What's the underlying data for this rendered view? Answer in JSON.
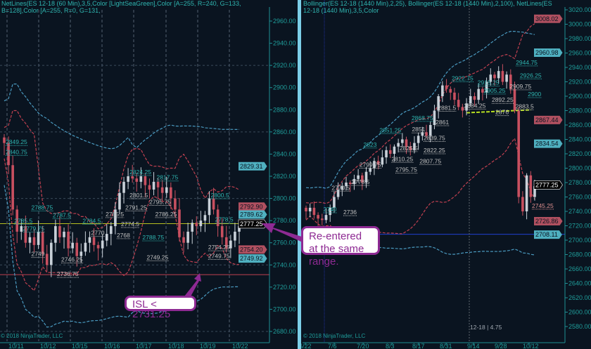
{
  "left_chart": {
    "header": "NetLines(ES 12-18 (60 Min),3,5,Color [LightSeaGreen],Color [A=255, R=240, G=133, B=128],Color [A=255, R=0, G=131,",
    "copyright": "© 2018 NinjaTrader, LLC",
    "x_labels": [
      "10/11",
      "10/12",
      "10/15",
      "10/16",
      "10/17",
      "10/18",
      "10/19",
      "10/22"
    ],
    "y_ticks": [
      2960,
      2940,
      2920,
      2900,
      2880,
      2860,
      2840,
      2820,
      2800,
      2780,
      2760,
      2740,
      2720,
      2700,
      2680
    ],
    "price_tags": [
      {
        "value": "2829.31",
        "color": "#4fb0c0"
      },
      {
        "value": "2792.90",
        "color": "#b05060"
      },
      {
        "value": "2789.62",
        "color": "#4fb0c0"
      },
      {
        "value": "2777.25",
        "color": "#000000"
      },
      {
        "value": "2754.20",
        "color": "#b05060"
      },
      {
        "value": "2749.92",
        "color": "#4fb0c0"
      }
    ],
    "level_labels": [
      {
        "text": "2849.25",
        "price": 2849,
        "bar": 1,
        "color": "#2fb5b0"
      },
      {
        "text": "2840.75",
        "price": 2840,
        "bar": 1,
        "color": "#2fb5b0"
      },
      {
        "text": "2788.75",
        "price": 2790,
        "bar": 7,
        "color": "#2fb5b0"
      },
      {
        "text": "2785.5",
        "price": 2778,
        "bar": 3,
        "color": "#2fb5b0"
      },
      {
        "text": "2779.75",
        "price": 2771,
        "bar": 5,
        "color": "#2fb5b0"
      },
      {
        "text": "2787.5",
        "price": 2783,
        "bar": 12,
        "color": "#2fb5b0"
      },
      {
        "text": "2784.5",
        "price": 2778,
        "bar": 19,
        "color": "#2fb5b0"
      },
      {
        "text": "2770",
        "price": 2767,
        "bar": 21,
        "color": "#c0c0c0"
      },
      {
        "text": "2768",
        "price": 2765,
        "bar": 27,
        "color": "#c0c0c0"
      },
      {
        "text": "2788.75",
        "price": 2763,
        "bar": 33,
        "color": "#2fb5b0"
      },
      {
        "text": "2749",
        "price": 2748,
        "bar": 7,
        "color": "#c0c0c0"
      },
      {
        "text": "2746.25",
        "price": 2743,
        "bar": 14,
        "color": "#c0c0c0"
      },
      {
        "text": "2749.25",
        "price": 2745,
        "bar": 34,
        "color": "#c0c0c0"
      },
      {
        "text": "2736.75",
        "price": 2730,
        "bar": 13,
        "color": "#c0c0c0"
      },
      {
        "text": "2824.25",
        "price": 2822,
        "bar": 30,
        "color": "#2fb5b0"
      },
      {
        "text": "2817.75",
        "price": 2817,
        "bar": 34,
        "color": "#2fb5b0"
      },
      {
        "text": "2801.5",
        "price": 2801,
        "bar": 30,
        "color": "#c0c0c0"
      },
      {
        "text": "2795.75",
        "price": 2795,
        "bar": 30,
        "color": "#c0c0c0"
      },
      {
        "text": "2791.25",
        "price": 2790,
        "bar": 29,
        "color": "#c0c0c0"
      },
      {
        "text": "2785.5",
        "price": 2784,
        "bar": 29,
        "color": "#c0c0c0"
      },
      {
        "text": "2786.25",
        "price": 2784,
        "bar": 36,
        "color": "#c0c0c0"
      },
      {
        "text": "2774.5",
        "price": 2775,
        "bar": 28,
        "color": "#c0c0c0"
      },
      {
        "text": "2800.5",
        "price": 2801,
        "bar": 49,
        "color": "#2fb5b0"
      },
      {
        "text": "2778.5",
        "price": 2779,
        "bar": 50,
        "color": "#2fb5b0"
      },
      {
        "text": "2754.25",
        "price": 2754,
        "bar": 53,
        "color": "#c0c0c0"
      },
      {
        "text": "2749.75",
        "price": 2750,
        "bar": 53,
        "color": "#c0c0c0"
      }
    ],
    "lines": {
      "current_price": 2777.25,
      "isl_level": 2731.25,
      "current_color": "#b8c020",
      "isl_color": "#c04050"
    }
  },
  "right_chart": {
    "header": "Bollinger(ES 12-18 (1440 Min),2,25), Bollinger(ES 12-18 (1440 Min),2,100), NetLines(ES 12-18 (1440 Min),3,5,Color",
    "copyright": "© 2018 NinjaTrader, LLC",
    "crosshair_readout": "12-18 | 4.75",
    "x_labels": [
      "6/22",
      "7/6",
      "7/20",
      "8/3",
      "8/17",
      "8/31",
      "9/14",
      "9/28",
      "10/12"
    ],
    "y_ticks": [
      3020,
      3000,
      2980,
      2960,
      2940,
      2920,
      2900,
      2880,
      2860,
      2840,
      2820,
      2800,
      2780,
      2760,
      2740,
      2720,
      2700,
      2680,
      2660,
      2640,
      2620,
      2600,
      2580
    ],
    "price_tags": [
      {
        "value": "3008.02",
        "color": "#b05060"
      },
      {
        "value": "2960.98",
        "color": "#4fb0c0"
      },
      {
        "value": "2867.44",
        "color": "#b05060"
      },
      {
        "value": "2834.54",
        "color": "#4fb0c0"
      },
      {
        "value": "2777.25",
        "color": "#000000"
      },
      {
        "value": "2726.86",
        "color": "#b05060"
      },
      {
        "value": "2708.11",
        "color": "#4fb0c0"
      }
    ],
    "level_labels": [
      {
        "text": "2944.75",
        "price": 2944,
        "bar": 53,
        "color": "#2fb5b0"
      },
      {
        "text": "2926.25",
        "price": 2926,
        "bar": 54,
        "color": "#2fb5b0"
      },
      {
        "text": "2900",
        "price": 2900,
        "bar": 56,
        "color": "#2fb5b0"
      },
      {
        "text": "2922.75",
        "price": 2922,
        "bar": 37,
        "color": "#2fb5b0"
      },
      {
        "text": "2915.25",
        "price": 2916,
        "bar": 41,
        "color": "#2fb5b0"
      },
      {
        "text": "2905.25",
        "price": 2905,
        "bar": 45,
        "color": "#2fb5b0"
      },
      {
        "text": "2909.75",
        "price": 2905,
        "bar": 49,
        "color": "#c0c0c0"
      },
      {
        "text": "2892.25",
        "price": 2892,
        "bar": 47,
        "color": "#c0c0c0"
      },
      {
        "text": "2884.25",
        "price": 2884,
        "bar": 45,
        "color": "#c0c0c0"
      },
      {
        "text": "2883.5",
        "price": 2883,
        "bar": 48,
        "color": "#c0c0c0"
      },
      {
        "text": "2881.5",
        "price": 2881,
        "bar": 36,
        "color": "#c0c0c0"
      },
      {
        "text": "2876",
        "price": 2875,
        "bar": 43,
        "color": "#c0c0c0"
      },
      {
        "text": "2868.75",
        "price": 2867,
        "bar": 27,
        "color": "#2fb5b0"
      },
      {
        "text": "2861",
        "price": 2861,
        "bar": 33,
        "color": "#c0c0c0"
      },
      {
        "text": "2851",
        "price": 2851,
        "bar": 32,
        "color": "#c0c0c0"
      },
      {
        "text": "2851.25",
        "price": 2850,
        "bar": 19,
        "color": "#2fb5b0"
      },
      {
        "text": "2839.75",
        "price": 2839,
        "bar": 30,
        "color": "#c0c0c0"
      },
      {
        "text": "2823",
        "price": 2830,
        "bar": 15,
        "color": "#2fb5b0"
      },
      {
        "text": "2825.5",
        "price": 2825,
        "bar": 24,
        "color": "#c0c0c0"
      },
      {
        "text": "2822.25",
        "price": 2822,
        "bar": 30,
        "color": "#c0c0c0"
      },
      {
        "text": "2810.25",
        "price": 2810,
        "bar": 22,
        "color": "#c0c0c0"
      },
      {
        "text": "2807.75",
        "price": 2807,
        "bar": 29,
        "color": "#c0c0c0"
      },
      {
        "text": "2799.75",
        "price": 2802,
        "bar": 14,
        "color": "#c0c0c0"
      },
      {
        "text": "2795.75",
        "price": 2795,
        "bar": 23,
        "color": "#c0c0c0"
      },
      {
        "text": "2778.5",
        "price": 2778,
        "bar": 12,
        "color": "#c0c0c0"
      },
      {
        "text": "2770.5",
        "price": 2770,
        "bar": 12,
        "color": "#c0c0c0"
      },
      {
        "text": "2740",
        "price": 2740,
        "bar": 5,
        "color": "#2fb5b0"
      },
      {
        "text": "2736",
        "price": 2736,
        "bar": 10,
        "color": "#c0c0c0"
      },
      {
        "text": "2745.25",
        "price": 2745,
        "bar": 57,
        "color": "#e09090"
      }
    ],
    "lines": {
      "support_level": 2708.11,
      "support_color": "#2040d0",
      "trendline_color": "#b8e020",
      "trendline": [
        [
          40,
          2877
        ],
        [
          56,
          2881
        ]
      ]
    }
  },
  "chart_data": [
    {
      "type": "candlestick",
      "title": "",
      "ylim": [
        2680,
        2960
      ],
      "close": [
        2850,
        2830,
        2790,
        2770,
        2775,
        2760,
        2765,
        2758,
        2770,
        2750,
        2740,
        2760,
        2775,
        2765,
        2770,
        2755,
        2760,
        2748,
        2752,
        2760,
        2765,
        2758,
        2755,
        2762,
        2768,
        2775,
        2790,
        2805,
        2815,
        2820,
        2818,
        2815,
        2820,
        2812,
        2808,
        2815,
        2810,
        2805,
        2810,
        2800,
        2790,
        2765,
        2760,
        2770,
        2778,
        2775,
        2780,
        2785,
        2800,
        2790,
        2775,
        2765,
        2755,
        2762,
        2770,
        2775
      ]
    },
    {
      "type": "candlestick",
      "title": "",
      "ylim": [
        2580,
        3020
      ],
      "close": [
        2740,
        2745,
        2735,
        2730,
        2728,
        2735,
        2745,
        2760,
        2770,
        2775,
        2780,
        2778,
        2785,
        2790,
        2780,
        2795,
        2800,
        2810,
        2805,
        2815,
        2825,
        2820,
        2830,
        2835,
        2840,
        2830,
        2825,
        2835,
        2845,
        2850,
        2845,
        2860,
        2880,
        2900,
        2915,
        2910,
        2905,
        2895,
        2885,
        2880,
        2890,
        2900,
        2895,
        2910,
        2905,
        2920,
        2930,
        2925,
        2935,
        2920,
        2930,
        2910,
        2880,
        2760,
        2740,
        2790,
        2760,
        2775
      ]
    }
  ],
  "annotations": {
    "reentered": "Re-entered at the same range.",
    "isl": "ISL < 2731.25",
    "color": "#8e2a93"
  },
  "colors": {
    "background": "#0a1420",
    "axis": "#1f8f95",
    "up": "#c8d0d8",
    "down": "#c85060",
    "band_red": "#c04050",
    "band_blue": "#4a9ac0",
    "divider": "#7ccfe8"
  }
}
